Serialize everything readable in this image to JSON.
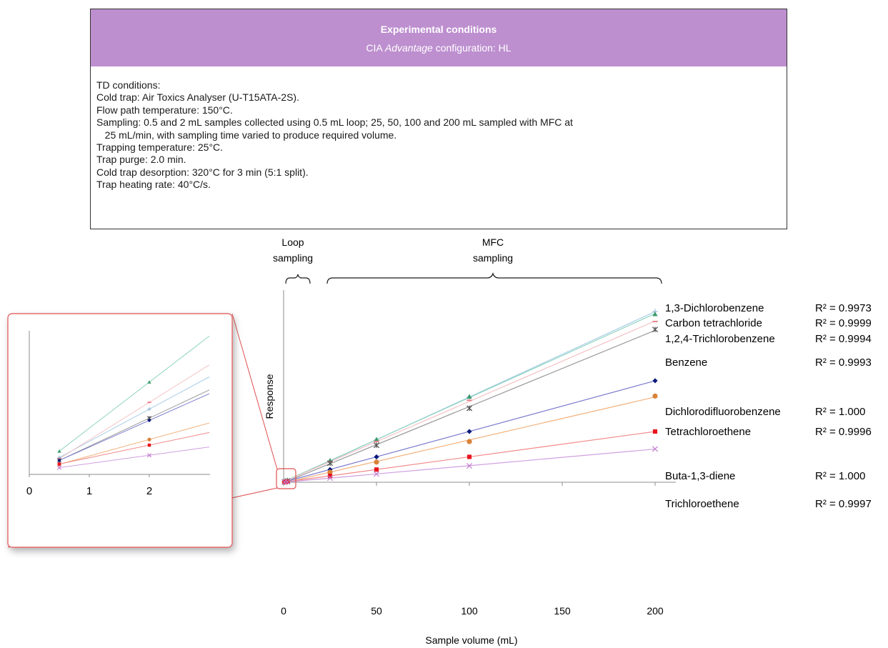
{
  "conditions": {
    "title": "Experimental conditions",
    "subtitle_prefix": "CIA ",
    "subtitle_italic": "Advantage",
    "subtitle_suffix": " configuration: HL",
    "lines": [
      "TD conditions:",
      "Cold trap: Air Toxics Analyser (U-T15ATA-2S).",
      "Flow path temperature: 150°C.",
      "Sampling: 0.5 and 2 mL samples collected using 0.5 mL loop; 25, 50, 100 and 200 mL sampled with MFC at",
      "   25 mL/min, with sampling time varied to produce required volume.",
      "Trapping temperature: 25°C.",
      "Trap purge: 2.0 min.",
      "Cold trap desorption: 320°C for 3 min (5:1 split).",
      "Trap heating rate: 40°C/s."
    ]
  },
  "annotations": {
    "loop_line1": "Loop",
    "loop_line2": "sampling",
    "mfc_line1": "MFC",
    "mfc_line2": "sampling"
  },
  "chart_data": {
    "type": "scatter",
    "xlabel": "Sample volume (mL)",
    "ylabel": "Response",
    "xlim": [
      0,
      210
    ],
    "xticks": [
      0,
      50,
      100,
      150,
      200
    ],
    "inset_xticks": [
      0,
      1,
      2
    ],
    "x": [
      0.5,
      2,
      25,
      50,
      100,
      200
    ],
    "series": [
      {
        "name": "1,3-Dichlorobenzene",
        "r2": "R² = 0.9973",
        "marker": "plus",
        "color": "#9dbbd8",
        "line": "#a8cde8",
        "values": [
          0.75,
          2.9,
          40.5,
          80,
          161,
          323
        ]
      },
      {
        "name": "Carbon tetrachloride",
        "r2": "R² = 0.9999",
        "marker": "triangle",
        "color": "#3a9a6a",
        "line": "#8fd4c0",
        "values": [
          1.03,
          4.1,
          41,
          81,
          162,
          318
        ]
      },
      {
        "name": "1,2,4-Trichlorobenzene",
        "r2": "R² = 0.9994",
        "marker": "dash",
        "color": "#e8828a",
        "line": "#f4c2c6",
        "values": [
          0.7,
          3.2,
          39,
          77,
          155,
          304
        ]
      },
      {
        "name": "Benzene",
        "r2": "R² = 0.9993",
        "marker": "star",
        "color": "#555555",
        "line": "#999999",
        "values": [
          0.62,
          2.5,
          36,
          70,
          140,
          289
        ]
      },
      {
        "name": "Dichlorodifluorobenzene",
        "r2": "R² = 1.000",
        "marker": "diamond",
        "color": "#0b1a7a",
        "line": "#7b7bd0",
        "values": [
          0.62,
          2.4,
          24,
          48,
          96,
          192
        ]
      },
      {
        "name": "Tetrachloroethene",
        "r2": "R² = 0.9996",
        "marker": "circle",
        "color": "#d9823a",
        "line": "#f2b07a",
        "values": [
          0.45,
          1.55,
          19,
          38,
          77,
          163
        ]
      },
      {
        "name": "Buta-1,3-diene",
        "r2": "R² = 1.000",
        "marker": "square",
        "color": "#e8141e",
        "line": "#f28a8a",
        "values": [
          0.46,
          1.3,
          12,
          24,
          48,
          96
        ]
      },
      {
        "name": "Trichloroethene",
        "r2": "R² = 0.9997",
        "marker": "x",
        "color": "#c27ed0",
        "line": "#cf9fe0",
        "values": [
          0.3,
          0.85,
          8,
          15.5,
          31,
          63
        ]
      }
    ]
  }
}
